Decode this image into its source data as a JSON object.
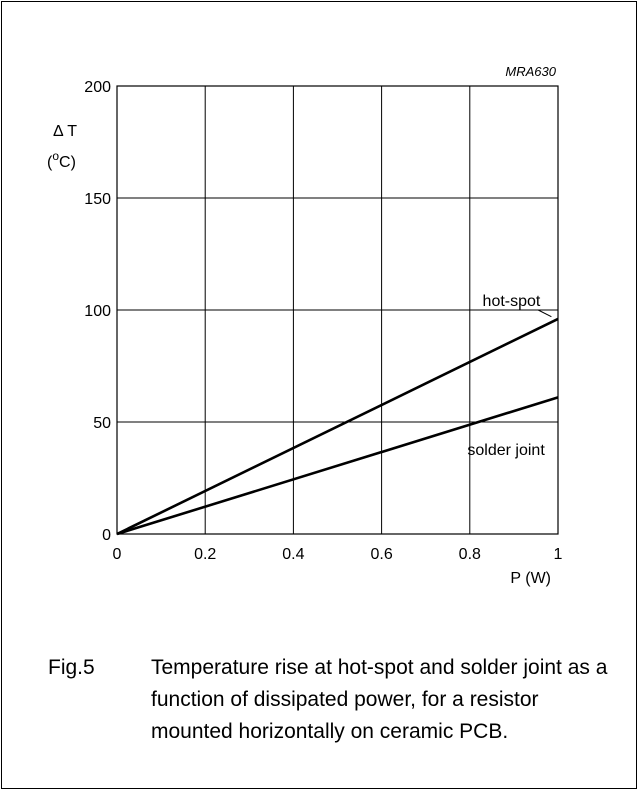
{
  "chart_data": {
    "type": "line",
    "code_label": "MRA630",
    "ylabel_symbol": "Δ T",
    "ylabel_unit_pre": "(",
    "ylabel_unit_sup": "o",
    "ylabel_unit_post": "C)",
    "xlabel": "P (W)",
    "xlim": [
      0,
      1
    ],
    "ylim": [
      0,
      200
    ],
    "grid": true,
    "x_ticks": [
      0,
      0.2,
      0.4,
      0.6,
      0.8,
      1
    ],
    "x_tick_labels": [
      "0",
      "0.2",
      "0.4",
      "0.6",
      "0.8",
      "1"
    ],
    "y_ticks": [
      0,
      50,
      100,
      150,
      200
    ],
    "y_tick_labels": [
      "0",
      "50",
      "100",
      "150",
      "200"
    ],
    "series": [
      {
        "name": "hot-spot",
        "x": [
          0,
          1
        ],
        "y": [
          0,
          96
        ]
      },
      {
        "name": "solder joint",
        "x": [
          0,
          1
        ],
        "y": [
          0,
          61
        ]
      }
    ]
  },
  "caption": {
    "figure_number": "Fig.5",
    "text": "Temperature rise at hot-spot and solder joint as a function of dissipated power, for a resistor mounted horizontally on ceramic PCB."
  }
}
